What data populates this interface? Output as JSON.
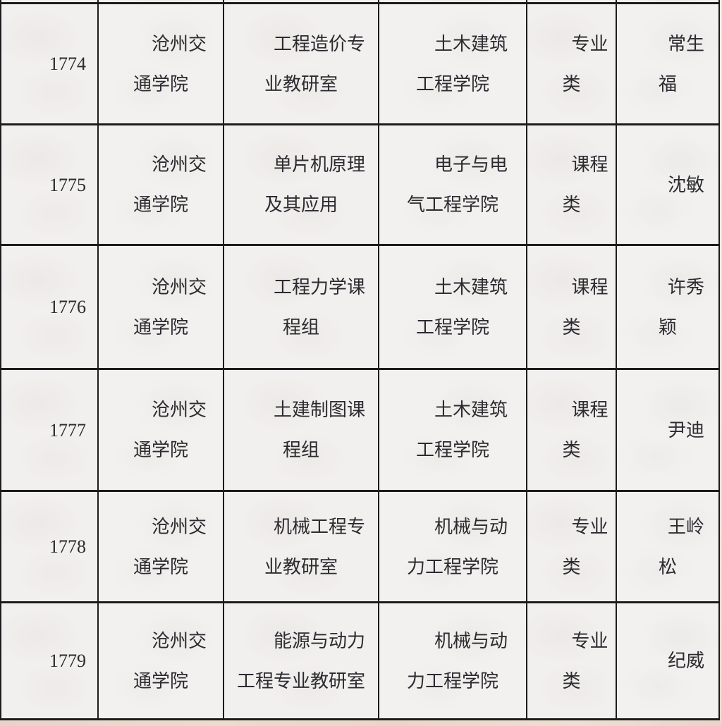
{
  "page": {
    "cell_background": "#f2f0ee",
    "outer_background": "#ecdfd6",
    "grid_line_color": "#1c1c1e",
    "text_color": "#2b2b30"
  },
  "table": {
    "description_of_columns": [
      "row-number",
      "school",
      "teaching-unit",
      "college",
      "category",
      "leader-name"
    ],
    "rows": [
      {
        "cells": [
          [
            "1774"
          ],
          [
            "沧州交",
            "通学院"
          ],
          [
            "工程造价专",
            "业教研室"
          ],
          [
            "土木建筑",
            "工程学院"
          ],
          [
            "专业",
            "类"
          ],
          [
            "常生",
            "福"
          ]
        ]
      },
      {
        "cells": [
          [
            "1775"
          ],
          [
            "沧州交",
            "通学院"
          ],
          [
            "单片机原理",
            "及其应用"
          ],
          [
            "电子与电",
            "气工程学院"
          ],
          [
            "课程",
            "类"
          ],
          [
            "沈敏"
          ]
        ]
      },
      {
        "cells": [
          [
            "1776"
          ],
          [
            "沧州交",
            "通学院"
          ],
          [
            "工程力学课",
            "程组"
          ],
          [
            "土木建筑",
            "工程学院"
          ],
          [
            "课程",
            "类"
          ],
          [
            "许秀",
            "颖"
          ]
        ]
      },
      {
        "cells": [
          [
            "1777"
          ],
          [
            "沧州交",
            "通学院"
          ],
          [
            "土建制图课",
            "程组"
          ],
          [
            "土木建筑",
            "工程学院"
          ],
          [
            "课程",
            "类"
          ],
          [
            "尹迪"
          ]
        ]
      },
      {
        "cells": [
          [
            "1778"
          ],
          [
            "沧州交",
            "通学院"
          ],
          [
            "机械工程专",
            "业教研室"
          ],
          [
            "机械与动",
            "力工程学院"
          ],
          [
            "专业",
            "类"
          ],
          [
            "王岭",
            "松"
          ]
        ]
      },
      {
        "cells": [
          [
            "1779"
          ],
          [
            "沧州交",
            "通学院"
          ],
          [
            "能源与动力",
            "工程专业教研室"
          ],
          [
            "机械与动",
            "力工程学院"
          ],
          [
            "专业",
            "类"
          ],
          [
            "纪威"
          ]
        ]
      }
    ]
  }
}
